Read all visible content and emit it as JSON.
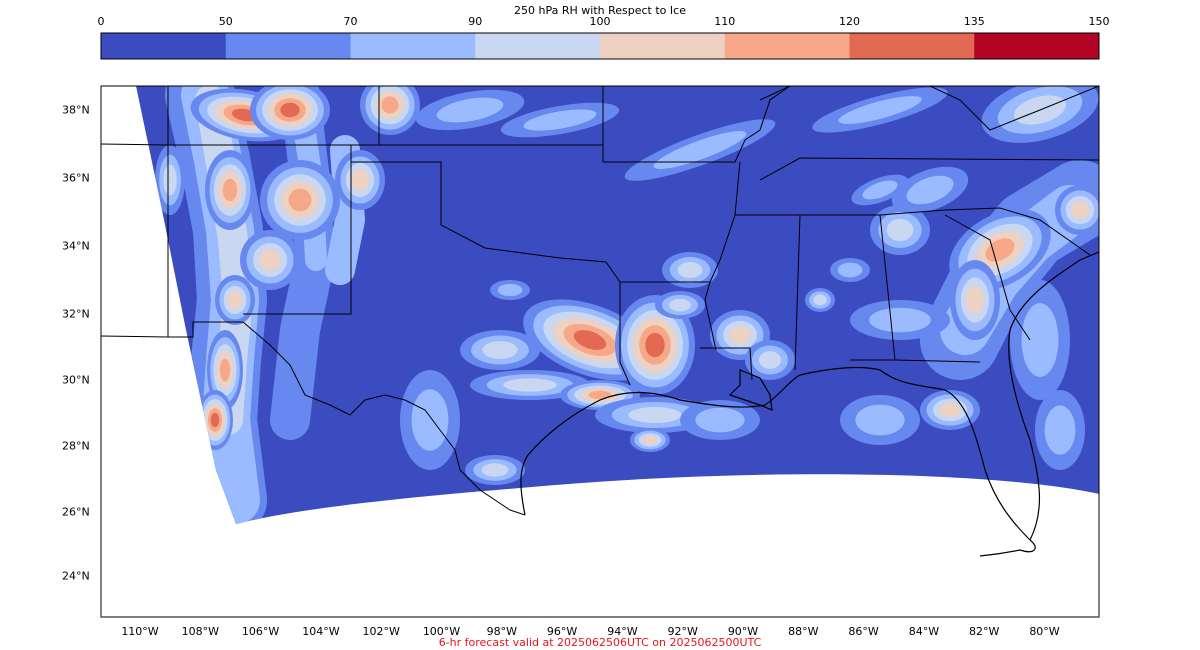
{
  "colorbar": {
    "title": "250 hPa RH with Respect to Ice",
    "ticks": [
      "0",
      "50",
      "70",
      "90",
      "100",
      "110",
      "120",
      "135",
      "150"
    ],
    "colors": [
      "#3b4cc0",
      "#6788ee",
      "#9abbff",
      "#c9d7f0",
      "#edd1c2",
      "#f7a889",
      "#e26952",
      "#b40426"
    ]
  },
  "map": {
    "lat_labels": [
      "38°N",
      "36°N",
      "34°N",
      "32°N",
      "30°N",
      "28°N",
      "26°N",
      "24°N"
    ],
    "lon_labels": [
      "110°W",
      "108°W",
      "106°W",
      "104°W",
      "102°W",
      "100°W",
      "98°W",
      "96°W",
      "94°W",
      "92°W",
      "90°W",
      "88°W",
      "86°W",
      "84°W",
      "82°W",
      "80°W"
    ],
    "ocean_color": "#ffffff",
    "boundary_color": "#000000"
  },
  "footer": {
    "text": "6-hr forecast valid at 2025062506UTC on 2025062500UTC",
    "color": "#e8141c"
  }
}
